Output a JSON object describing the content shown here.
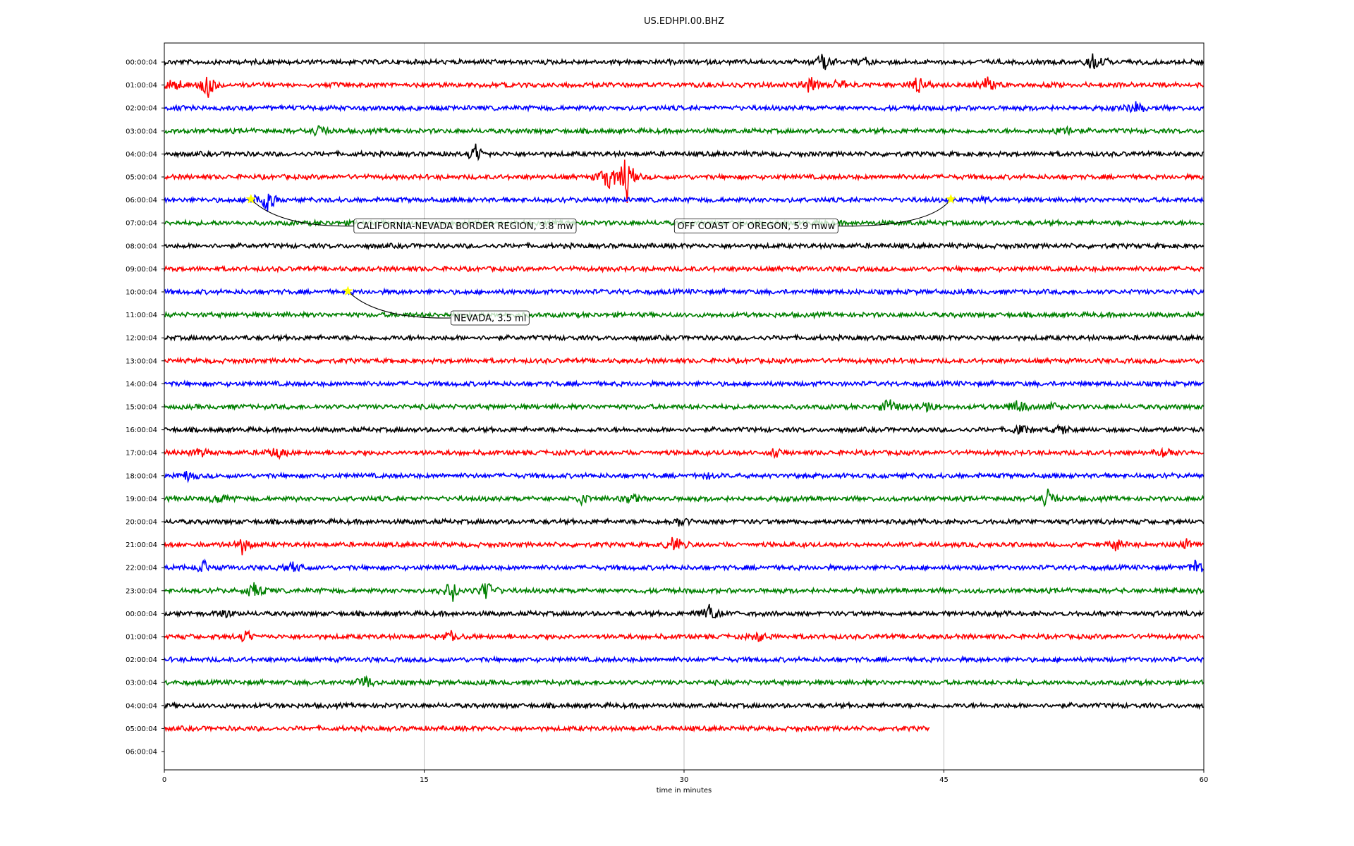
{
  "chart_data": {
    "type": "line",
    "title": "US.EDHPI.00.BHZ",
    "xlabel": "time in minutes",
    "ylabel": "",
    "xlim": [
      0,
      60
    ],
    "x_ticks": [
      "0",
      "15",
      "30",
      "45",
      "60"
    ],
    "grid": "vertical lines at 15, 30, 45",
    "line_colors": [
      "#000000",
      "#ff0000",
      "#0000ff",
      "#008000"
    ],
    "row_labels": [
      "00:00:04",
      "01:00:04",
      "02:00:04",
      "03:00:04",
      "04:00:04",
      "05:00:04",
      "06:00:04",
      "07:00:04",
      "08:00:04",
      "09:00:04",
      "10:00:04",
      "11:00:04",
      "12:00:04",
      "13:00:04",
      "14:00:04",
      "15:00:04",
      "16:00:04",
      "17:00:04",
      "18:00:04",
      "19:00:04",
      "20:00:04",
      "21:00:04",
      "22:00:04",
      "23:00:04",
      "00:00:04",
      "01:00:04",
      "02:00:04",
      "03:00:04",
      "04:00:04",
      "05:00:04",
      "06:00:04"
    ],
    "last_trace_end_minute": 44.2,
    "events": [
      {
        "row": 6,
        "minute": 5.0,
        "label": "CALIFORNIA-NEVADA BORDER REGION, 3.8 mw"
      },
      {
        "row": 6,
        "minute": 45.4,
        "label": "OFF COAST OF OREGON, 5.9 mww"
      },
      {
        "row": 10,
        "minute": 10.6,
        "label": "NEVADA, 3.5 ml"
      }
    ],
    "bursts": [
      {
        "row": 0,
        "minute": 38.1,
        "amp": 0.8
      },
      {
        "row": 0,
        "minute": 53.7,
        "amp": 0.9
      },
      {
        "row": 0,
        "minute": 40.5,
        "amp": 0.35
      },
      {
        "row": 1,
        "minute": 0.6,
        "amp": 0.7
      },
      {
        "row": 1,
        "minute": 2.5,
        "amp": 1.0
      },
      {
        "row": 1,
        "minute": 37.3,
        "amp": 0.6
      },
      {
        "row": 1,
        "minute": 39.0,
        "amp": 0.6
      },
      {
        "row": 1,
        "minute": 43.5,
        "amp": 0.8
      },
      {
        "row": 1,
        "minute": 47.5,
        "amp": 0.6
      },
      {
        "row": 2,
        "minute": 56.0,
        "amp": 0.6
      },
      {
        "row": 3,
        "minute": 9.0,
        "amp": 0.5
      },
      {
        "row": 3,
        "minute": 51.9,
        "amp": 0.5
      },
      {
        "row": 4,
        "minute": 18.0,
        "amp": 0.8
      },
      {
        "row": 5,
        "minute": 25.6,
        "amp": 1.4
      },
      {
        "row": 5,
        "minute": 26.7,
        "amp": 1.9
      },
      {
        "row": 6,
        "minute": 5.8,
        "amp": 1.5
      },
      {
        "row": 6,
        "minute": 47.3,
        "amp": 0.3
      },
      {
        "row": 15,
        "minute": 41.8,
        "amp": 0.7
      },
      {
        "row": 15,
        "minute": 44.0,
        "amp": 0.6
      },
      {
        "row": 15,
        "minute": 49.3,
        "amp": 0.5
      },
      {
        "row": 15,
        "minute": 51.3,
        "amp": 0.4
      },
      {
        "row": 16,
        "minute": 49.4,
        "amp": 0.4
      },
      {
        "row": 16,
        "minute": 51.8,
        "amp": 0.4
      },
      {
        "row": 17,
        "minute": 2.1,
        "amp": 0.4
      },
      {
        "row": 17,
        "minute": 6.5,
        "amp": 0.5
      },
      {
        "row": 17,
        "minute": 35.2,
        "amp": 0.4
      },
      {
        "row": 17,
        "minute": 57.8,
        "amp": 0.4
      },
      {
        "row": 18,
        "minute": 1.3,
        "amp": 0.4
      },
      {
        "row": 18,
        "minute": 31.5,
        "amp": 0.3
      },
      {
        "row": 19,
        "minute": 3.1,
        "amp": 0.5
      },
      {
        "row": 19,
        "minute": 24.0,
        "amp": 0.5
      },
      {
        "row": 19,
        "minute": 27.0,
        "amp": 0.5
      },
      {
        "row": 19,
        "minute": 51.0,
        "amp": 0.8
      },
      {
        "row": 20,
        "minute": 29.8,
        "amp": 0.4
      },
      {
        "row": 21,
        "minute": 4.5,
        "amp": 0.7
      },
      {
        "row": 21,
        "minute": 29.5,
        "amp": 0.7
      },
      {
        "row": 21,
        "minute": 55.0,
        "amp": 0.5
      },
      {
        "row": 21,
        "minute": 59.0,
        "amp": 0.4
      },
      {
        "row": 22,
        "minute": 2.3,
        "amp": 0.5
      },
      {
        "row": 22,
        "minute": 7.3,
        "amp": 0.4
      },
      {
        "row": 22,
        "minute": 59.6,
        "amp": 0.7
      },
      {
        "row": 23,
        "minute": 5.2,
        "amp": 0.7
      },
      {
        "row": 23,
        "minute": 16.6,
        "amp": 0.9
      },
      {
        "row": 23,
        "minute": 18.6,
        "amp": 1.0
      },
      {
        "row": 24,
        "minute": 3.5,
        "amp": 0.3
      },
      {
        "row": 24,
        "minute": 31.5,
        "amp": 1.0
      },
      {
        "row": 25,
        "minute": 4.7,
        "amp": 0.5
      },
      {
        "row": 25,
        "minute": 16.5,
        "amp": 0.6
      },
      {
        "row": 25,
        "minute": 34.3,
        "amp": 0.4
      },
      {
        "row": 27,
        "minute": 11.6,
        "amp": 0.7
      }
    ]
  }
}
